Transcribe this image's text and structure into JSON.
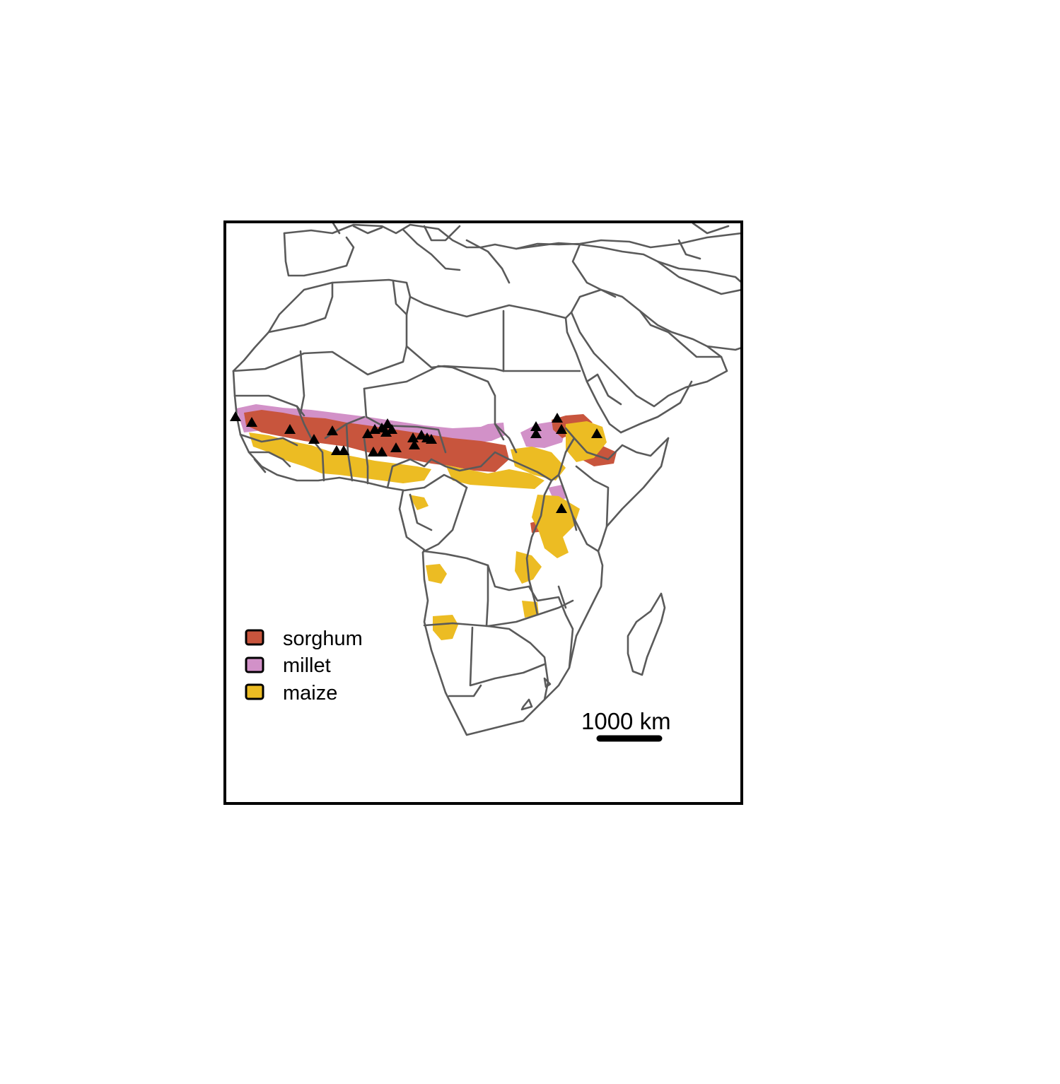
{
  "legend": {
    "items": [
      {
        "label": "sorghum",
        "color": "#c8553d"
      },
      {
        "label": "millet",
        "color": "#d291c8"
      },
      {
        "label": "maize",
        "color": "#ecbc23"
      }
    ]
  },
  "scale_bar": {
    "label": "1000 km"
  },
  "colors": {
    "border": "#5a5a5a",
    "frame": "#000000",
    "marker": "#000000"
  },
  "markers": {
    "shape": "triangle-icon",
    "count": 27
  }
}
